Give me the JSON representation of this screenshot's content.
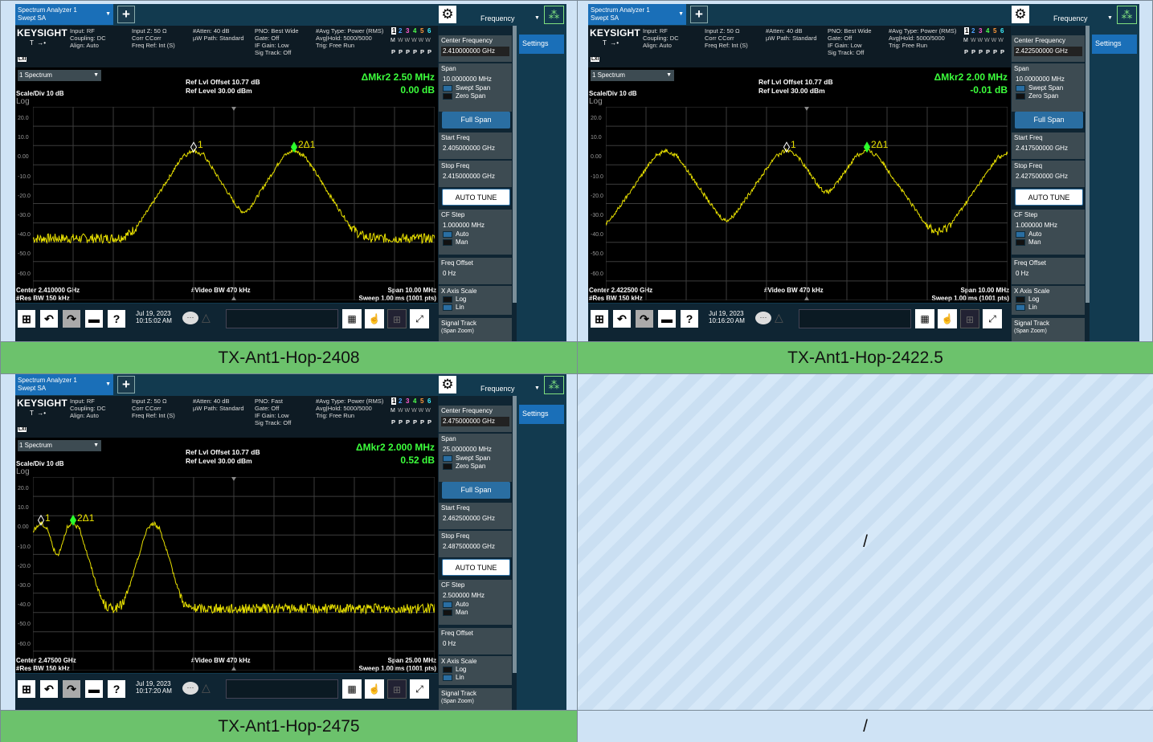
{
  "cells": [
    {
      "caption": "TX-Ant1-Hop-2408",
      "analyzer_title": [
        "Spectrum Analyzer 1",
        "Swept SA"
      ],
      "brand": "KEYSIGHT",
      "meta": [
        "Input: RF\nCoupling: DC\nAlign: Auto",
        "Input Z: 50 Ω\nCorr CCorr\nFreq Ref: Int (S)",
        "#Atten: 40 dB\nµW Path: Standard",
        "PNO: Best Wide\nGate: Off\nIF Gain: Low\nSig Track: Off",
        "#Avg Type: Power (RMS)\nAvg|Hold: 5000/5000\nTrig: Free Run"
      ],
      "trace_numbers": [
        "1",
        "2",
        "3",
        "4",
        "5",
        "6"
      ],
      "trace_modes": [
        "M",
        "W W W W W"
      ],
      "trace_types": [
        "P",
        "P",
        "P",
        "P",
        "P",
        "P"
      ],
      "top_menu": "Frequency",
      "settings_label": "Settings",
      "window": "1 Spectrum",
      "ref_offset": "Ref Lvl Offset 10.77 dB",
      "ref_level": "Ref Level 30.00 dBm",
      "marker_label": "ΔMkr2  2.50 MHz",
      "marker_value": "0.00 dB",
      "scale": "Scale/Div 10 dB",
      "scale_type": "Log",
      "y_ticks": [
        "20.0",
        "10.0",
        "0.00",
        "-10.0",
        "-20.0",
        "-30.0",
        "-40.0",
        "-50.0",
        "-60.0"
      ],
      "center": "Center 2.410000 GHz",
      "res_bw": "#Res BW 150 kHz",
      "video_bw": "#Video BW 470 kHz",
      "span_lbl": "Span 10.00 MHz",
      "sweep": "Sweep 1.00 ms (1001 pts)",
      "date": "Jul 19, 2023",
      "time": "10:15:02 AM",
      "panel": {
        "center_freq_label": "Center Frequency",
        "center_freq": "2.410000000 GHz",
        "span_label": "Span",
        "span": "10.0000000 MHz",
        "swept_span": "Swept Span",
        "zero_span": "Zero Span",
        "full_span": "Full Span",
        "start_label": "Start Freq",
        "start": "2.405000000 GHz",
        "stop_label": "Stop Freq",
        "stop": "2.415000000 GHz",
        "auto_tune": "AUTO TUNE",
        "cf_step_label": "CF Step",
        "cf_step": "1.000000 MHz",
        "auto": "Auto",
        "man": "Man",
        "freq_offset_label": "Freq Offset",
        "freq_offset": "0 Hz",
        "x_axis_label": "X Axis Scale",
        "log": "Log",
        "lin": "Lin",
        "signal_track": "Signal Track",
        "span_zoom": "(Span Zoom)"
      },
      "markers": [
        {
          "text": "1",
          "x": -1.0
        },
        {
          "text": "2Δ1",
          "x": 1.5
        }
      ],
      "trace": {
        "x_min": -5,
        "x_max": 5,
        "noise": -38,
        "peaks": [
          {
            "x": -1.0,
            "y": 7.5,
            "w": 0.22,
            "base": 0.55
          },
          {
            "x": 1.5,
            "y": 7.5,
            "w": 0.22,
            "base": 0.55
          }
        ]
      }
    },
    {
      "caption": "TX-Ant1-Hop-2422.5",
      "analyzer_title": [
        "Spectrum Analyzer 1",
        "Swept SA"
      ],
      "brand": "KEYSIGHT",
      "meta": [
        "Input: RF\nCoupling: DC\nAlign: Auto",
        "Input Z: 50 Ω\nCorr CCorr\nFreq Ref: Int (S)",
        "#Atten: 40 dB\nµW Path: Standard",
        "PNO: Best Wide\nGate: Off\nIF Gain: Low\nSig Track: Off",
        "#Avg Type: Power (RMS)\nAvg|Hold: 5000/5000\nTrig: Free Run"
      ],
      "trace_numbers": [
        "1",
        "2",
        "3",
        "4",
        "5",
        "6"
      ],
      "trace_modes": [
        "M",
        "W W W W W"
      ],
      "trace_types": [
        "P",
        "P",
        "P",
        "P",
        "P",
        "P"
      ],
      "top_menu": "Frequency",
      "settings_label": "Settings",
      "window": "1 Spectrum",
      "ref_offset": "Ref Lvl Offset 10.77 dB",
      "ref_level": "Ref Level 30.00 dBm",
      "marker_label": "ΔMkr2  2.00 MHz",
      "marker_value": "-0.01 dB",
      "scale": "Scale/Div 10 dB",
      "scale_type": "Log",
      "y_ticks": [
        "20.0",
        "10.0",
        "0.00",
        "-10.0",
        "-20.0",
        "-30.0",
        "-40.0",
        "-50.0",
        "-60.0"
      ],
      "center": "Center 2.422500 GHz",
      "res_bw": "#Res BW 150 kHz",
      "video_bw": "#Video BW 470 kHz",
      "span_lbl": "Span 10.00 MHz",
      "sweep": "Sweep 1.00 ms (1001 pts)",
      "date": "Jul 19, 2023",
      "time": "10:16:20 AM",
      "panel": {
        "center_freq_label": "Center Frequency",
        "center_freq": "2.422500000 GHz",
        "span_label": "Span",
        "span": "10.0000000 MHz",
        "swept_span": "Swept Span",
        "zero_span": "Zero Span",
        "full_span": "Full Span",
        "start_label": "Start Freq",
        "start": "2.417500000 GHz",
        "stop_label": "Stop Freq",
        "stop": "2.427500000 GHz",
        "auto_tune": "AUTO TUNE",
        "cf_step_label": "CF Step",
        "cf_step": "1.000000 MHz",
        "auto": "Auto",
        "man": "Man",
        "freq_offset_label": "Freq Offset",
        "freq_offset": "0 Hz",
        "x_axis_label": "X Axis Scale",
        "log": "Log",
        "lin": "Lin",
        "signal_track": "Signal Track",
        "span_zoom": "(Span Zoom)"
      },
      "markers": [
        {
          "text": "1",
          "x": -0.5
        },
        {
          "text": "2Δ1",
          "x": 1.5
        }
      ],
      "trace": {
        "x_min": -5,
        "x_max": 5,
        "noise": -38,
        "peaks": [
          {
            "x": -3.5,
            "y": 7.5,
            "w": 0.22,
            "base": 0.6
          },
          {
            "x": -0.5,
            "y": 7.5,
            "w": 0.22,
            "base": 0.6
          },
          {
            "x": 1.5,
            "y": 7.5,
            "w": 0.22,
            "base": 0.6
          },
          {
            "x": 5.0,
            "y": 6,
            "w": 0.22,
            "base": 0.6
          }
        ]
      }
    },
    {
      "caption": "TX-Ant1-Hop-2475",
      "analyzer_title": [
        "Spectrum Analyzer 1",
        "Swept SA"
      ],
      "brand": "KEYSIGHT",
      "meta": [
        "Input: RF\nCoupling: DC\nAlign: Auto",
        "Input Z: 50 Ω\nCorr CCorr\nFreq Ref: Int (S)",
        "#Atten: 40 dB\nµW Path: Standard",
        "PNO: Fast\nGate: Off\nIF Gain: Low\nSig Track: Off",
        "#Avg Type: Power (RMS)\nAvg|Hold: 5000/5000\nTrig: Free Run"
      ],
      "trace_numbers": [
        "1",
        "2",
        "3",
        "4",
        "5",
        "6"
      ],
      "trace_modes": [
        "M",
        "W W W W W"
      ],
      "trace_types": [
        "P",
        "P",
        "P",
        "P",
        "P",
        "P"
      ],
      "top_menu": "Frequency",
      "settings_label": "Settings",
      "window": "1 Spectrum",
      "ref_offset": "Ref Lvl Offset 10.77 dB",
      "ref_level": "Ref Level 30.00 dBm",
      "marker_label": "ΔMkr2  2.000 MHz",
      "marker_value": "0.52 dB",
      "scale": "Scale/Div 10 dB",
      "scale_type": "Log",
      "y_ticks": [
        "20.0",
        "10.0",
        "0.00",
        "-10.0",
        "-20.0",
        "-30.0",
        "-40.0",
        "-50.0",
        "-60.0"
      ],
      "center": "Center 2.47500 GHz",
      "res_bw": "#Res BW 150 kHz",
      "video_bw": "#Video BW 470 kHz",
      "span_lbl": "Span 25.00 MHz",
      "sweep": "Sweep 1.00 ms (1001 pts)",
      "date": "Jul 19, 2023",
      "time": "10:17:20 AM",
      "panel": {
        "center_freq_label": "Center Frequency",
        "center_freq": "2.475000000 GHz",
        "span_label": "Span",
        "span": "25.0000000 MHz",
        "swept_span": "Swept Span",
        "zero_span": "Zero Span",
        "full_span": "Full Span",
        "start_label": "Start Freq",
        "start": "2.462500000 GHz",
        "stop_label": "Stop Freq",
        "stop": "2.487500000 GHz",
        "auto_tune": "AUTO TUNE",
        "cf_step_label": "CF Step",
        "cf_step": "2.500000 MHz",
        "auto": "Auto",
        "man": "Man",
        "freq_offset_label": "Freq Offset",
        "freq_offset": "0 Hz",
        "x_axis_label": "X Axis Scale",
        "log": "Log",
        "lin": "Lin",
        "signal_track": "Signal Track",
        "span_zoom": "(Span Zoom)"
      },
      "markers": [
        {
          "text": "1",
          "x": -12.0
        },
        {
          "text": "2Δ1",
          "x": -10.0
        }
      ],
      "trace": {
        "x_min": -12.5,
        "x_max": 12.5,
        "noise": -38,
        "peaks": [
          {
            "x": -12.0,
            "y": 6,
            "w": 0.35,
            "base": 0.65
          },
          {
            "x": -10.0,
            "y": 6,
            "w": 0.35,
            "base": 0.65
          },
          {
            "x": -5.0,
            "y": 6,
            "w": 0.35,
            "base": 0.65
          }
        ]
      }
    }
  ],
  "placeholder_mark": "/",
  "placeholder_caption": "/",
  "colors": {
    "trace": "#e8e000",
    "marker": "#2cff2c",
    "caption_bg": "#6cc26c"
  }
}
